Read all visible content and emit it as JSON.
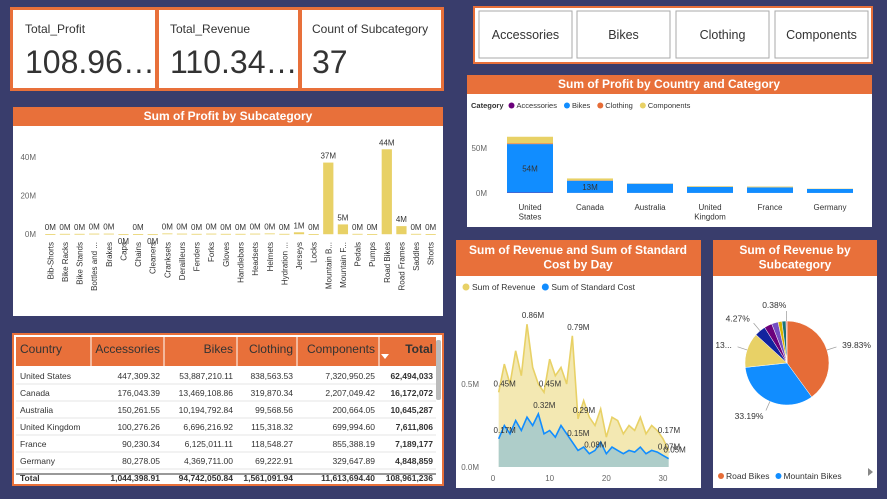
{
  "cards": [
    {
      "label": "Total_Profit",
      "value": "108.96…"
    },
    {
      "label": "Total_Revenue",
      "value": "110.34…"
    },
    {
      "label": "Count of Subcategory",
      "value": "37"
    }
  ],
  "slicer": [
    "Accessories",
    "Bikes",
    "Clothing",
    "Components"
  ],
  "chart_data": [
    {
      "type": "bar",
      "title": "Sum of Profit by Subcategory",
      "categories": [
        "Bib-Shorts",
        "Bike Racks",
        "Bike Stands",
        "Bottles and ...",
        "Brakes",
        "Caps",
        "Chains",
        "Cleaners",
        "Cranksets",
        "Derailleurs",
        "Fenders",
        "Forks",
        "Gloves",
        "Handlebars",
        "Headsets",
        "Helmets",
        "Hydration ...",
        "Jerseys",
        "Locks",
        "Mountain B...",
        "Mountain F...",
        "Pedals",
        "Pumps",
        "Road Bikes",
        "Road Frames",
        "Saddles",
        "Shorts"
      ],
      "values": [
        0.1,
        0.2,
        0.2,
        0.3,
        0.3,
        -0.1,
        0.1,
        -0.1,
        0.4,
        0.3,
        0.2,
        0.3,
        0.2,
        0.2,
        0.3,
        0.4,
        0.2,
        1.0,
        0.1,
        37.2,
        5.1,
        0.2,
        0.1,
        44.1,
        4.2,
        0.2,
        0.1
      ],
      "value_labels": [
        "0M",
        "0M",
        "0M",
        "0M",
        "0M",
        "0M",
        "0M",
        "0M",
        "0M",
        "0M",
        "0M",
        "0M",
        "0M",
        "0M",
        "0M",
        "0M",
        "0M",
        "1M",
        "0M",
        "37M",
        "5M",
        "0M",
        "0M",
        "44M",
        "4M",
        "0M",
        "0M"
      ],
      "color": "#e8d166",
      "ylim": [
        -3,
        51
      ],
      "yticks": [
        {
          "value": 0,
          "label": "0M"
        },
        {
          "value": 20,
          "label": "20M"
        },
        {
          "value": 40,
          "label": "40M"
        }
      ],
      "grid": false
    },
    {
      "type": "stacked_bar",
      "title": "Sum of Profit by Country and Category",
      "legend_title": "Category",
      "categories": [
        "United States",
        "Canada",
        "Australia",
        "United Kingdom",
        "France",
        "Germany"
      ],
      "series": [
        {
          "name": "Accessories",
          "color": "#6b007b",
          "values": [
            0.45,
            0.18,
            0.15,
            0.1,
            0.09,
            0.08
          ]
        },
        {
          "name": "Bikes",
          "color": "#118dff",
          "values": [
            53.89,
            13.47,
            10.19,
            6.7,
            6.13,
            4.37
          ],
          "value_labels": [
            "54M",
            "13M",
            null,
            null,
            null,
            null
          ]
        },
        {
          "name": "Clothing",
          "color": "#e66c37",
          "values": [
            0.84,
            0.32,
            0.1,
            0.12,
            0.12,
            0.07
          ]
        },
        {
          "name": "Components",
          "color": "#e8d166",
          "values": [
            7.32,
            2.21,
            0.2,
            0.7,
            0.86,
            0.33
          ]
        }
      ],
      "ylim": [
        0,
        70
      ],
      "yticks": [
        {
          "value": 0,
          "label": "0M"
        },
        {
          "value": 50,
          "label": "50M"
        }
      ]
    },
    {
      "type": "area",
      "title": "Sum of Revenue and Sum of Standard Cost by Day",
      "x": [
        1,
        2,
        3,
        4,
        5,
        6,
        7,
        8,
        9,
        10,
        11,
        12,
        13,
        14,
        15,
        16,
        17,
        18,
        19,
        20,
        21,
        22,
        23,
        24,
        25,
        26,
        27,
        28,
        29,
        30,
        31
      ],
      "series": [
        {
          "name": "Sum of Revenue",
          "color": "#e8d166",
          "values": [
            0.45,
            0.62,
            0.5,
            0.7,
            0.55,
            0.86,
            0.6,
            0.5,
            0.45,
            0.65,
            0.55,
            0.6,
            0.5,
            0.79,
            0.29,
            0.4,
            0.3,
            0.25,
            0.35,
            0.18,
            0.3,
            0.28,
            0.2,
            0.25,
            0.22,
            0.3,
            0.2,
            0.25,
            0.22,
            0.17,
            0.1
          ],
          "value_labels": [
            "0.45M",
            null,
            null,
            null,
            null,
            "0.86M",
            null,
            null,
            "0.45M",
            null,
            null,
            null,
            null,
            "0.79M",
            "0.29M",
            null,
            null,
            null,
            null,
            null,
            null,
            null,
            null,
            null,
            null,
            null,
            null,
            null,
            null,
            "0.17M",
            null
          ]
        },
        {
          "name": "Sum of Standard Cost",
          "color": "#118dff",
          "values": [
            0.17,
            0.25,
            0.2,
            0.28,
            0.22,
            0.3,
            0.25,
            0.32,
            0.2,
            0.22,
            0.18,
            0.25,
            0.2,
            0.15,
            0.1,
            0.12,
            0.08,
            0.1,
            0.15,
            0.08,
            0.12,
            0.1,
            0.08,
            0.1,
            0.09,
            0.12,
            0.08,
            0.1,
            0.09,
            0.07,
            0.05
          ],
          "value_labels": [
            "0.17M",
            null,
            null,
            null,
            null,
            null,
            null,
            "0.32M",
            null,
            null,
            null,
            null,
            null,
            "0.15M",
            null,
            null,
            "0.08M",
            null,
            null,
            null,
            null,
            null,
            null,
            null,
            null,
            null,
            null,
            null,
            null,
            "0.07M",
            "0.05M"
          ]
        }
      ],
      "xlim": [
        0,
        33
      ],
      "xticks": [
        0,
        10,
        20,
        30
      ],
      "ylim": [
        0,
        1.0
      ],
      "yticks": [
        {
          "value": 0,
          "label": "0.0M"
        },
        {
          "value": 0.5,
          "label": "0.5M"
        }
      ]
    },
    {
      "type": "pie",
      "title": "Sum of Revenue by Subcategory",
      "categories": [
        "Road Bikes",
        "Mountain Bikes",
        null,
        null,
        null,
        null,
        null,
        null,
        null
      ],
      "values": [
        39.83,
        33.19,
        13.4,
        4.27,
        3.0,
        2.5,
        1.5,
        1.53,
        0.38
      ],
      "value_labels": [
        "39.83%",
        "33.19%",
        "13...",
        "4.27%",
        null,
        null,
        null,
        null,
        "0.38%"
      ],
      "colors": [
        "#e66c37",
        "#118dff",
        "#e8d166",
        "#12239e",
        "#6b007b",
        "#744ec2",
        "#d9b300",
        "#197278",
        "#d64550"
      ]
    }
  ],
  "table": {
    "columns": [
      "Country",
      "Accessories",
      "Bikes",
      "Clothing",
      "Components",
      "Total"
    ],
    "rows": [
      [
        "United States",
        "447,309.32",
        "53,887,210.11",
        "838,563.53",
        "7,320,950.25",
        "62,494,033"
      ],
      [
        "Canada",
        "176,043.39",
        "13,469,108.86",
        "319,870.34",
        "2,207,049.42",
        "16,172,072"
      ],
      [
        "Australia",
        "150,261.55",
        "10,194,792.84",
        "99,568.56",
        "200,664.05",
        "10,645,287"
      ],
      [
        "United Kingdom",
        "100,276.26",
        "6,696,216.92",
        "115,318.32",
        "699,994.60",
        "7,611,806"
      ],
      [
        "France",
        "90,230.34",
        "6,125,011.11",
        "118,548.27",
        "855,388.19",
        "7,189,177"
      ],
      [
        "Germany",
        "80,278.05",
        "4,369,711.00",
        "69,222.91",
        "329,647.89",
        "4,848,859"
      ]
    ],
    "total": [
      "Total",
      "1,044,398.91",
      "94,742,050.84",
      "1,561,091.94",
      "11,613,694.40",
      "108,961,236"
    ]
  }
}
